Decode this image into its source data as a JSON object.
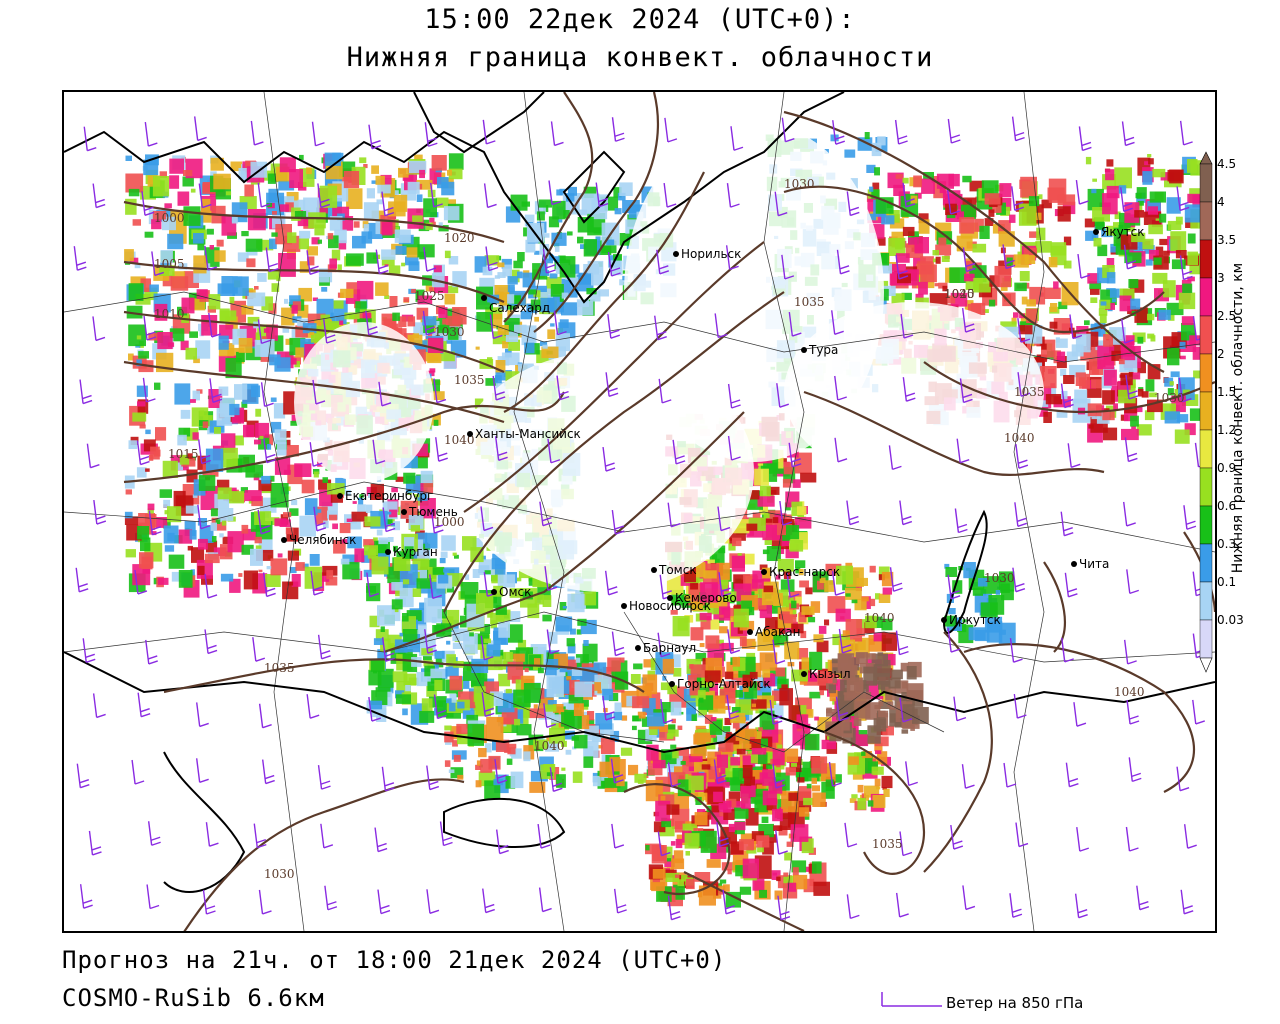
{
  "header": {
    "title_line1": "15:00 22дек 2024 (UTC+0):",
    "title_line2": "Нижняя граница конвект. облачности"
  },
  "footer": {
    "forecast": "Прогноз на 21ч. от 18:00 21дек 2024 (UTC+0)",
    "model": "COSMO-RuSib 6.6км",
    "wind_legend": "Ветер на 850 гПа"
  },
  "colors": {
    "isobar": "#5a3a2a",
    "wind_barb": "#8a2be2",
    "border": "#000000"
  },
  "colorbar": {
    "title": "Нижняя граница конвект. облачности, км",
    "levels": [
      {
        "label": "0.03",
        "color": "#d8d8f8"
      },
      {
        "label": "0.1",
        "color": "#a8d4f4"
      },
      {
        "label": "0.3",
        "color": "#3a9ce8"
      },
      {
        "label": "0.6",
        "color": "#18c018"
      },
      {
        "label": "0.9",
        "color": "#98e020"
      },
      {
        "label": "1.2",
        "color": "#e8e840"
      },
      {
        "label": "1.5",
        "color": "#e8b020"
      },
      {
        "label": "2",
        "color": "#f09020"
      },
      {
        "label": "2.5",
        "color": "#f05050"
      },
      {
        "label": "3",
        "color": "#f01880"
      },
      {
        "label": "3.5",
        "color": "#c01010"
      },
      {
        "label": "4",
        "color": "#a06858"
      },
      {
        "label": "4.5",
        "color": "#806050"
      }
    ]
  },
  "cities": [
    {
      "name": "Норильск"
    },
    {
      "name": "Якутск"
    },
    {
      "name": "Салехард"
    },
    {
      "name": "Тура"
    },
    {
      "name": "Ханты-Мансийск"
    },
    {
      "name": "Екатеринбург"
    },
    {
      "name": "Тюмень"
    },
    {
      "name": "Челябинск"
    },
    {
      "name": "Курган"
    },
    {
      "name": "Омск"
    },
    {
      "name": "Новосибирск"
    },
    {
      "name": "Томск"
    },
    {
      "name": "Кемерово"
    },
    {
      "name": "Барнаул"
    },
    {
      "name": "Горно-Алтайск"
    },
    {
      "name": "Абакан"
    },
    {
      "name": "Кызыл"
    },
    {
      "name": "Крас-нарск"
    },
    {
      "name": "Иркутск"
    },
    {
      "name": "Чита"
    }
  ],
  "isobar_labels": [
    "1000",
    "1005",
    "1010",
    "1015",
    "1020",
    "1025",
    "1030",
    "1035",
    "1040",
    "1000",
    "1005",
    "1010",
    "1015",
    "1020",
    "1025",
    "1030",
    "1035",
    "1040",
    "1025",
    "1030",
    "1035",
    "1040",
    "1030",
    "1035",
    "1040",
    "1035",
    "1040",
    "1030",
    "1035",
    "1040",
    "1040",
    "1030"
  ]
}
